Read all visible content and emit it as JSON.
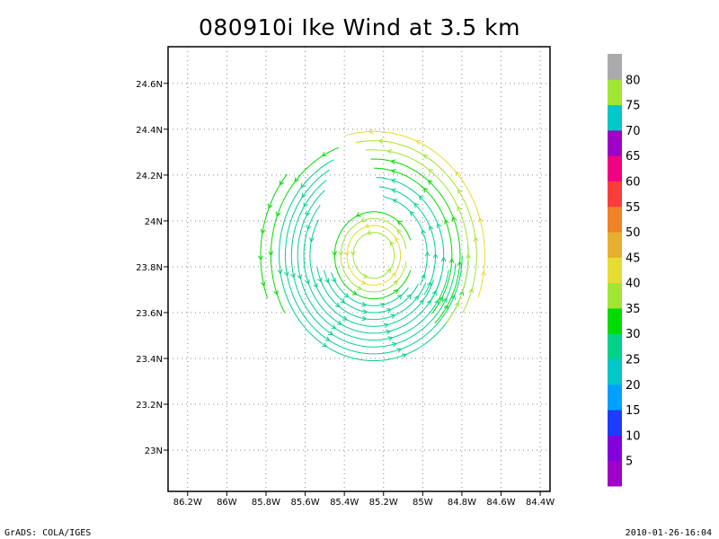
{
  "title": "080910i Ike Wind at 3.5 km",
  "footer": {
    "left": "GrADS: COLA/IGES",
    "right": "2010-01-26-16:04"
  },
  "chart_data": {
    "type": "streamline",
    "title": "080910i Ike Wind at 3.5 km",
    "xlabel": "",
    "ylabel": "",
    "xlim": [
      -86.3,
      -84.35
    ],
    "ylim": [
      22.82,
      24.76
    ],
    "grid": true,
    "x_ticks": [
      {
        "value": -86.2,
        "label": "86.2W"
      },
      {
        "value": -86.0,
        "label": "86W"
      },
      {
        "value": -85.8,
        "label": "85.8W"
      },
      {
        "value": -85.6,
        "label": "85.6W"
      },
      {
        "value": -85.4,
        "label": "85.4W"
      },
      {
        "value": -85.2,
        "label": "85.2W"
      },
      {
        "value": -85.0,
        "label": "85W"
      },
      {
        "value": -84.8,
        "label": "84.8W"
      },
      {
        "value": -84.6,
        "label": "84.6W"
      },
      {
        "value": -84.4,
        "label": "84.4W"
      }
    ],
    "y_ticks": [
      {
        "value": 23.0,
        "label": "23N"
      },
      {
        "value": 23.2,
        "label": "23.2N"
      },
      {
        "value": 23.4,
        "label": "23.4N"
      },
      {
        "value": 23.6,
        "label": "23.6N"
      },
      {
        "value": 23.8,
        "label": "23.8N"
      },
      {
        "value": 24.0,
        "label": "24N"
      },
      {
        "value": 24.2,
        "label": "24.2N"
      },
      {
        "value": 24.4,
        "label": "24.4N"
      },
      {
        "value": 24.6,
        "label": "24.6N"
      }
    ],
    "storm_center": {
      "lon": -85.25,
      "lat": 23.85
    },
    "field": {
      "description_free": true,
      "arcs": [
        {
          "r": 0.1,
          "start": 0,
          "end": 360,
          "speed": 38
        },
        {
          "r": 0.13,
          "start": 0,
          "end": 360,
          "speed": 40
        },
        {
          "r": 0.16,
          "start": 10,
          "end": 350,
          "speed": 38
        },
        {
          "r": 0.19,
          "start": 20,
          "end": 340,
          "speed": 34
        },
        {
          "r": 0.22,
          "start": 200,
          "end": 320,
          "speed": 28
        },
        {
          "r": 0.25,
          "start": 195,
          "end": 330,
          "speed": 27
        },
        {
          "r": 0.28,
          "start": 190,
          "end": 335,
          "speed": 26
        },
        {
          "r": 0.31,
          "start": 150,
          "end": 340,
          "speed": 26
        },
        {
          "r": 0.34,
          "start": 140,
          "end": 345,
          "speed": 25
        },
        {
          "r": 0.37,
          "start": 130,
          "end": 350,
          "speed": 25
        },
        {
          "r": 0.4,
          "start": 125,
          "end": 355,
          "speed": 25
        },
        {
          "r": 0.43,
          "start": 120,
          "end": 360,
          "speed": 26
        },
        {
          "r": 0.46,
          "start": 115,
          "end": 365,
          "speed": 28
        },
        {
          "r": 0.5,
          "start": 110,
          "end": 210,
          "speed": 30
        },
        {
          "r": 0.55,
          "start": 140,
          "end": 200,
          "speed": 33
        },
        {
          "r": 0.26,
          "start": -30,
          "end": 80,
          "speed": 28
        },
        {
          "r": 0.3,
          "start": -35,
          "end": 85,
          "speed": 27
        },
        {
          "r": 0.34,
          "start": -40,
          "end": 88,
          "speed": 28
        },
        {
          "r": 0.38,
          "start": -42,
          "end": 90,
          "speed": 30
        },
        {
          "r": 0.42,
          "start": -45,
          "end": 92,
          "speed": 32
        },
        {
          "r": 0.46,
          "start": -40,
          "end": 95,
          "speed": 36
        },
        {
          "r": 0.5,
          "start": -30,
          "end": 100,
          "speed": 38
        },
        {
          "r": 0.54,
          "start": -20,
          "end": 105,
          "speed": 40
        }
      ]
    },
    "colorbar": {
      "levels": [
        "5",
        "10",
        "15",
        "20",
        "25",
        "30",
        "35",
        "40",
        "45",
        "50",
        "55",
        "60",
        "65",
        "70",
        "75",
        "80"
      ],
      "colors": [
        "#a000c8",
        "#8200dc",
        "#1e3cff",
        "#00a0ff",
        "#00c8c8",
        "#00d28c",
        "#00dc00",
        "#a0e632",
        "#e6dc32",
        "#e6af2d",
        "#f08228",
        "#fa3c3c",
        "#f00082",
        "#a000c8",
        "#00c8c8",
        "#a0e632",
        "#aaaaaa"
      ]
    }
  }
}
